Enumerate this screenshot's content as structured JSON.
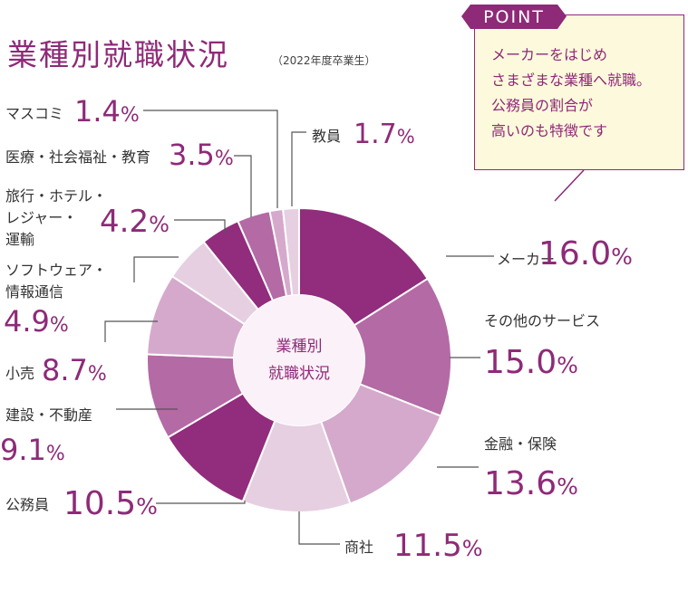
{
  "title": "業種別就職状況",
  "subtitle": "（2022年度卒業生）",
  "center_label": [
    "業種別",
    "就職状況"
  ],
  "point": {
    "tab": "POINT",
    "lines": [
      "メーカーをはじめ",
      "さまざまな業種へ就職。",
      "公務員の割合が",
      "高いのも特徴です"
    ]
  },
  "chart_data": {
    "type": "pie",
    "donut": true,
    "unit": "%",
    "categories": [
      "メーカー",
      "その他のサービス",
      "金融・保険",
      "商社",
      "公務員",
      "建設・不動産",
      "小売",
      "ソフトウェア・情報通信",
      "旅行・ホテル・レジャー・運輸",
      "医療・社会福祉・教育",
      "マスコミ",
      "教員"
    ],
    "values": [
      16.0,
      15.0,
      13.6,
      11.5,
      10.5,
      9.1,
      8.7,
      4.9,
      4.2,
      3.5,
      1.4,
      1.7
    ],
    "colors": [
      "#922c7c",
      "#b46aa4",
      "#d5a9cc",
      "#e6cfe1",
      "#922c7c",
      "#b46aa4",
      "#d5a9cc",
      "#e6cfe1",
      "#922c7c",
      "#b46aa4",
      "#d5a9cc",
      "#e6cfe1"
    ],
    "labels": [
      {
        "text": [
          "メーカー"
        ],
        "pct": "16.0",
        "unit": "%"
      },
      {
        "text": [
          "その他のサービス"
        ],
        "pct": "15.0",
        "unit": "%"
      },
      {
        "text": [
          "金融・保険"
        ],
        "pct": "13.6",
        "unit": "%"
      },
      {
        "text": [
          "商社"
        ],
        "pct": "11.5",
        "unit": "%"
      },
      {
        "text": [
          "公務員"
        ],
        "pct": "10.5",
        "unit": "%"
      },
      {
        "text": [
          "建設・不動産"
        ],
        "pct": "9.1",
        "unit": "%"
      },
      {
        "text": [
          "小売"
        ],
        "pct": "8.7",
        "unit": "%"
      },
      {
        "text": [
          "ソフトウェア・",
          "情報通信"
        ],
        "pct": "4.9",
        "unit": "%"
      },
      {
        "text": [
          "旅行・ホテル・",
          "レジャー・",
          "運輸"
        ],
        "pct": "4.2",
        "unit": "%"
      },
      {
        "text": [
          "医療・社会福祉・教育"
        ],
        "pct": "3.5",
        "unit": "%"
      },
      {
        "text": [
          "マスコミ"
        ],
        "pct": "1.4",
        "unit": "%"
      },
      {
        "text": [
          "教員"
        ],
        "pct": "1.7",
        "unit": "%"
      }
    ]
  }
}
